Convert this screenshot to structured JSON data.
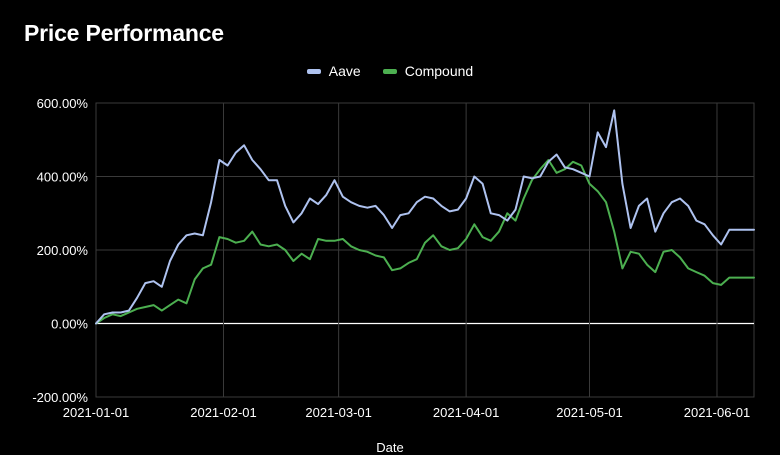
{
  "chart_data": {
    "type": "line",
    "title": "Price Performance",
    "xlabel": "Date",
    "ylabel": "",
    "ylim": [
      -200,
      600
    ],
    "y_tick_labels": [
      "600.00%",
      "400.00%",
      "200.00%",
      "0.00%",
      "-200.00%"
    ],
    "y_ticks": [
      600,
      400,
      200,
      0,
      -200
    ],
    "x_tick_labels": [
      "2021-01-01",
      "2021-02-01",
      "2021-03-01",
      "2021-04-01",
      "2021-05-01",
      "2021-06-01"
    ],
    "x_range": [
      "2021-01-01",
      "2021-06-10"
    ],
    "grid": true,
    "legend_position": "top-center",
    "x": [
      "2021-01-01",
      "2021-01-03",
      "2021-01-05",
      "2021-01-07",
      "2021-01-09",
      "2021-01-11",
      "2021-01-13",
      "2021-01-15",
      "2021-01-17",
      "2021-01-19",
      "2021-01-21",
      "2021-01-23",
      "2021-01-25",
      "2021-01-27",
      "2021-01-29",
      "2021-01-31",
      "2021-02-02",
      "2021-02-04",
      "2021-02-06",
      "2021-02-08",
      "2021-02-10",
      "2021-02-12",
      "2021-02-14",
      "2021-02-16",
      "2021-02-18",
      "2021-02-20",
      "2021-02-22",
      "2021-02-24",
      "2021-02-26",
      "2021-02-28",
      "2021-03-02",
      "2021-03-04",
      "2021-03-06",
      "2021-03-08",
      "2021-03-10",
      "2021-03-12",
      "2021-03-14",
      "2021-03-16",
      "2021-03-18",
      "2021-03-20",
      "2021-03-22",
      "2021-03-24",
      "2021-03-26",
      "2021-03-28",
      "2021-03-30",
      "2021-04-01",
      "2021-04-03",
      "2021-04-05",
      "2021-04-07",
      "2021-04-09",
      "2021-04-11",
      "2021-04-13",
      "2021-04-15",
      "2021-04-17",
      "2021-04-19",
      "2021-04-21",
      "2021-04-23",
      "2021-04-25",
      "2021-04-27",
      "2021-04-29",
      "2021-05-01",
      "2021-05-03",
      "2021-05-05",
      "2021-05-07",
      "2021-05-09",
      "2021-05-11",
      "2021-05-13",
      "2021-05-15",
      "2021-05-17",
      "2021-05-19",
      "2021-05-21",
      "2021-05-23",
      "2021-05-25",
      "2021-05-27",
      "2021-05-29",
      "2021-05-31",
      "2021-06-02",
      "2021-06-04",
      "2021-06-06",
      "2021-06-08",
      "2021-06-10"
    ],
    "series": [
      {
        "name": "Aave",
        "color": "#aec2ef",
        "values": [
          0,
          25,
          30,
          30,
          35,
          70,
          110,
          115,
          100,
          170,
          215,
          240,
          245,
          240,
          330,
          445,
          430,
          465,
          485,
          445,
          420,
          390,
          390,
          320,
          275,
          300,
          340,
          325,
          350,
          390,
          345,
          330,
          320,
          315,
          320,
          295,
          260,
          295,
          300,
          330,
          345,
          340,
          320,
          305,
          310,
          340,
          400,
          380,
          300,
          295,
          280,
          310,
          400,
          395,
          400,
          440,
          460,
          425,
          420,
          410,
          400,
          520,
          480,
          580,
          380,
          260,
          320,
          340,
          250,
          300,
          330,
          340,
          320,
          280,
          270,
          240,
          215,
          255,
          255,
          255,
          255
        ]
      },
      {
        "name": "Compound",
        "color": "#4caf50",
        "values": [
          0,
          15,
          25,
          20,
          30,
          40,
          45,
          50,
          35,
          50,
          65,
          55,
          120,
          150,
          160,
          235,
          230,
          220,
          225,
          250,
          215,
          210,
          215,
          200,
          170,
          190,
          175,
          230,
          225,
          225,
          230,
          210,
          200,
          195,
          185,
          180,
          145,
          150,
          165,
          175,
          220,
          240,
          210,
          200,
          205,
          230,
          270,
          235,
          225,
          250,
          300,
          280,
          340,
          390,
          420,
          445,
          410,
          420,
          440,
          430,
          380,
          360,
          330,
          250,
          150,
          195,
          190,
          160,
          140,
          195,
          200,
          180,
          150,
          140,
          130,
          110,
          105,
          125,
          125,
          125,
          125
        ]
      }
    ]
  }
}
